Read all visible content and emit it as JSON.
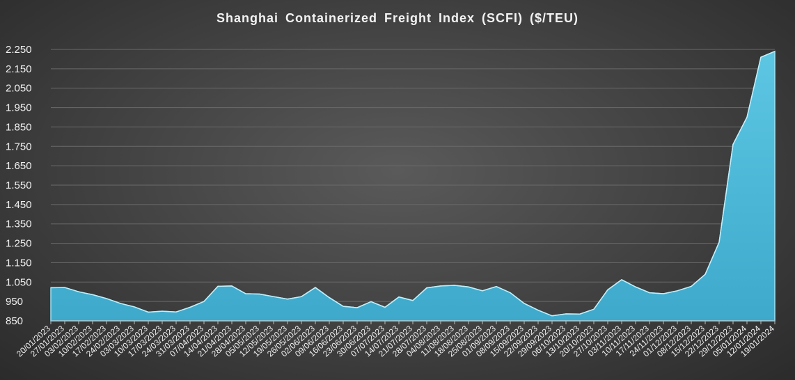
{
  "chart_data": {
    "type": "area",
    "title": "Shanghai  Containerized  Freight  Index  (SCFI) ($/TEU)",
    "xlabel": "",
    "ylabel": "",
    "ylim": [
      850,
      2250
    ],
    "yticks": [
      "850",
      "950",
      "1.050",
      "1.150",
      "1.250",
      "1.350",
      "1.450",
      "1.550",
      "1.650",
      "1.750",
      "1.850",
      "1.950",
      "2.050",
      "2.150",
      "2.250"
    ],
    "grid": true,
    "legend": "none",
    "fill_color": "#4bb8d8",
    "categories": [
      "20/01/2023",
      "27/01/2023",
      "03/02/2023",
      "10/02/2023",
      "17/02/2023",
      "24/02/2023",
      "03/03/2023",
      "10/03/2023",
      "17/03/2023",
      "24/03/2023",
      "31/03/2023",
      "07/04/2023",
      "14/04/2023",
      "21/04/2023",
      "28/04/2023",
      "05/05/2023",
      "12/05/2023",
      "19/05/2023",
      "26/05/2023",
      "02/06/2023",
      "09/06/2023",
      "16/06/2023",
      "23/06/2023",
      "30/06/2023",
      "07/07/2023",
      "14/07/2023",
      "21/07/2023",
      "28/07/2023",
      "04/08/2023",
      "11/08/2023",
      "18/08/2023",
      "25/08/2023",
      "01/09/2023",
      "08/09/2023",
      "15/09/2023",
      "22/09/2023",
      "29/09/2023",
      "06/10/2023",
      "13/10/2023",
      "20/10/2023",
      "27/10/2023",
      "03/11/2023",
      "10/11/2023",
      "17/11/2023",
      "24/11/2023",
      "01/12/2023",
      "08/12/2023",
      "15/12/2023",
      "22/12/2023",
      "29/12/2023",
      "05/01/2024",
      "12/01/2024",
      "19/01/2024"
    ],
    "values": [
      1021,
      1022,
      1000,
      985,
      965,
      940,
      922,
      895,
      900,
      896,
      920,
      950,
      1028,
      1030,
      990,
      988,
      975,
      962,
      975,
      1022,
      970,
      925,
      918,
      949,
      920,
      973,
      955,
      1020,
      1030,
      1033,
      1025,
      1005,
      1027,
      995,
      940,
      905,
      876,
      886,
      885,
      910,
      1010,
      1062,
      1025,
      995,
      990,
      1005,
      1028,
      1090,
      1255,
      1760,
      1900,
      2210,
      2240
    ]
  }
}
